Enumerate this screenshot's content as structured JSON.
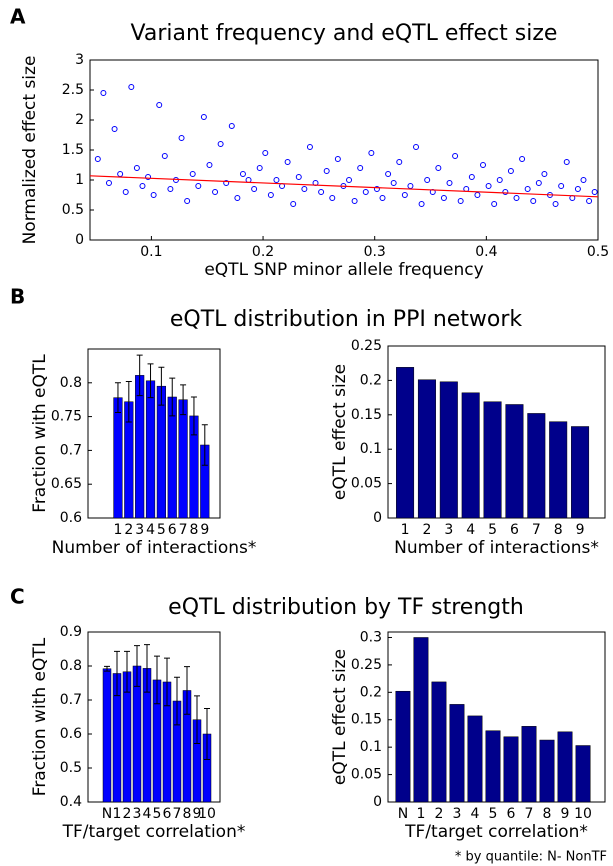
{
  "figure": {
    "panel_labels": [
      "A",
      "B",
      "C"
    ],
    "section_titles": [
      "eQTL distribution in PPI network",
      "eQTL distribution by TF strength"
    ],
    "footnote": "* by quantile: N- NonTF"
  },
  "chart_data": [
    {
      "type": "scatter",
      "title": "Variant frequency and eQTL effect size",
      "xlabel": "eQTL SNP minor allele frequency",
      "ylabel": "Normalized effect size",
      "color": "#0000ff",
      "x": [
        0.052,
        0.057,
        0.062,
        0.067,
        0.072,
        0.077,
        0.082,
        0.087,
        0.092,
        0.097,
        0.102,
        0.107,
        0.112,
        0.117,
        0.122,
        0.127,
        0.132,
        0.137,
        0.142,
        0.147,
        0.152,
        0.157,
        0.162,
        0.167,
        0.172,
        0.177,
        0.182,
        0.187,
        0.192,
        0.197,
        0.202,
        0.207,
        0.212,
        0.217,
        0.222,
        0.227,
        0.232,
        0.237,
        0.242,
        0.247,
        0.252,
        0.257,
        0.262,
        0.267,
        0.272,
        0.277,
        0.282,
        0.287,
        0.292,
        0.297,
        0.302,
        0.307,
        0.312,
        0.317,
        0.322,
        0.327,
        0.332,
        0.337,
        0.342,
        0.347,
        0.352,
        0.357,
        0.362,
        0.367,
        0.372,
        0.377,
        0.382,
        0.387,
        0.392,
        0.397,
        0.402,
        0.407,
        0.412,
        0.417,
        0.422,
        0.427,
        0.432,
        0.437,
        0.442,
        0.447,
        0.452,
        0.457,
        0.462,
        0.467,
        0.472,
        0.477,
        0.482,
        0.487,
        0.492,
        0.497
      ],
      "y": [
        1.35,
        2.45,
        0.95,
        1.85,
        1.1,
        0.8,
        2.55,
        1.2,
        0.9,
        1.05,
        0.75,
        2.25,
        1.4,
        0.85,
        1.0,
        1.7,
        0.65,
        1.1,
        0.9,
        2.05,
        1.25,
        0.8,
        1.6,
        0.95,
        1.9,
        0.7,
        1.1,
        1.0,
        0.85,
        1.2,
        1.45,
        0.75,
        1.0,
        0.9,
        1.3,
        0.6,
        1.05,
        0.85,
        1.55,
        0.95,
        0.8,
        1.15,
        0.7,
        1.35,
        0.9,
        1.0,
        0.65,
        1.2,
        0.8,
        1.45,
        0.85,
        0.7,
        1.1,
        0.95,
        1.3,
        0.75,
        0.9,
        1.55,
        0.6,
        1.0,
        0.8,
        1.2,
        0.7,
        0.95,
        1.4,
        0.65,
        0.85,
        1.05,
        0.75,
        1.25,
        0.9,
        0.6,
        1.0,
        0.8,
        1.15,
        0.7,
        1.35,
        0.85,
        0.65,
        0.95,
        1.1,
        0.75,
        0.6,
        0.9,
        1.3,
        0.7,
        0.85,
        1.0,
        0.65,
        0.8
      ],
      "trend": {
        "x": [
          0.045,
          0.5
        ],
        "y": [
          1.07,
          0.72
        ],
        "color": "#ff0000"
      },
      "xlim": [
        0.045,
        0.5
      ],
      "xticks": [
        0.1,
        0.2,
        0.3,
        0.4,
        0.5
      ],
      "ylim": [
        0,
        3
      ],
      "yticks": [
        0,
        0.5,
        1,
        1.5,
        2,
        2.5,
        3
      ]
    },
    {
      "type": "bar",
      "xlabel": "Number of interactions*",
      "ylabel": "Fraction with eQTL",
      "color": "#0000ff",
      "categories": [
        "1",
        "2",
        "3",
        "4",
        "5",
        "6",
        "7",
        "8",
        "9"
      ],
      "values": [
        0.778,
        0.772,
        0.811,
        0.803,
        0.795,
        0.779,
        0.775,
        0.751,
        0.708
      ],
      "errors": [
        0.022,
        0.03,
        0.03,
        0.025,
        0.028,
        0.028,
        0.022,
        0.028,
        0.03
      ],
      "ylim": [
        0.6,
        0.85
      ],
      "yticks": [
        0.6,
        0.65,
        0.7,
        0.75,
        0.8
      ]
    },
    {
      "type": "bar",
      "xlabel": "Number of interactions*",
      "ylabel": "eQTL effect size",
      "color": "#00008b",
      "categories": [
        "1",
        "2",
        "3",
        "4",
        "5",
        "6",
        "7",
        "8",
        "9"
      ],
      "values": [
        0.219,
        0.201,
        0.198,
        0.182,
        0.169,
        0.165,
        0.152,
        0.14,
        0.133
      ],
      "ylim": [
        0,
        0.25
      ],
      "yticks": [
        0,
        0.05,
        0.1,
        0.15,
        0.2,
        0.25
      ]
    },
    {
      "type": "bar",
      "xlabel": "TF/target correlation*",
      "ylabel": "Fraction with eQTL",
      "color": "#0000ff",
      "categories": [
        "N",
        "1",
        "2",
        "3",
        "4",
        "5",
        "6",
        "7",
        "8",
        "9",
        "10"
      ],
      "values": [
        0.792,
        0.778,
        0.783,
        0.8,
        0.793,
        0.759,
        0.753,
        0.697,
        0.728,
        0.642,
        0.6
      ],
      "errors": [
        0.007,
        0.065,
        0.06,
        0.06,
        0.07,
        0.07,
        0.07,
        0.07,
        0.07,
        0.07,
        0.075
      ],
      "ylim": [
        0.4,
        0.9
      ],
      "yticks": [
        0.4,
        0.5,
        0.6,
        0.7,
        0.8,
        0.9
      ]
    },
    {
      "type": "bar",
      "xlabel": "TF/target correlation*",
      "ylabel": "eQTL effect size",
      "color": "#00008b",
      "categories": [
        "N",
        "1",
        "2",
        "3",
        "4",
        "5",
        "6",
        "7",
        "8",
        "9",
        "10"
      ],
      "values": [
        0.202,
        0.3,
        0.219,
        0.178,
        0.157,
        0.13,
        0.119,
        0.138,
        0.113,
        0.128,
        0.103
      ],
      "ylim": [
        0,
        0.31
      ],
      "yticks": [
        0,
        0.05,
        0.1,
        0.15,
        0.2,
        0.25,
        0.3
      ]
    }
  ]
}
